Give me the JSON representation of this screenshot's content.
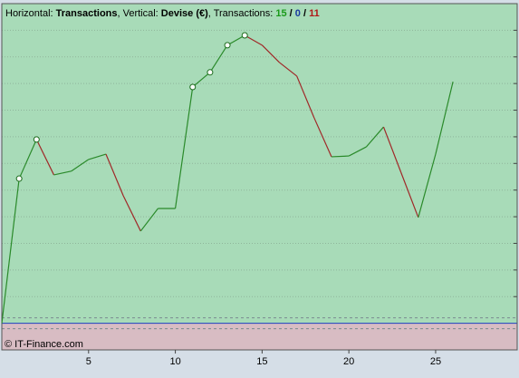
{
  "chart_data": {
    "type": "line",
    "title_parts": [
      {
        "text": "Horizontal: "
      },
      {
        "text": "Transactions",
        "bold": true
      },
      {
        "text": ", Vertical: "
      },
      {
        "text": "Devise (€)",
        "bold": true
      },
      {
        "text": ", Transactions: "
      },
      {
        "text": "15",
        "bold": true,
        "color": "#1a9a1a"
      },
      {
        "text": " / ",
        "bold": true
      },
      {
        "text": "0",
        "bold": true,
        "color": "#1a3aa0"
      },
      {
        "text": " / ",
        "bold": true
      },
      {
        "text": "11",
        "bold": true,
        "color": "#b01818"
      }
    ],
    "footer": "© IT-Finance.com",
    "x": [
      0,
      1,
      2,
      3,
      4,
      5,
      6,
      7,
      8,
      9,
      10,
      11,
      12,
      13,
      14,
      15,
      16,
      17,
      18,
      19,
      20,
      21,
      22,
      23,
      24,
      25,
      26
    ],
    "values": [
      0,
      5.43,
      6.9,
      5.57,
      5.71,
      6.15,
      6.35,
      4.79,
      3.46,
      4.31,
      4.31,
      8.87,
      9.42,
      10.44,
      10.81,
      10.44,
      9.79,
      9.28,
      7.71,
      6.25,
      6.28,
      6.62,
      7.37,
      5.67,
      3.97,
      6.35,
      9.07
    ],
    "up_color": "#2a8a2a",
    "down_color": "#a02828",
    "xlim": [
      0,
      29.7
    ],
    "ylim": [
      -1,
      12
    ],
    "xticks": [
      5,
      10,
      15,
      20,
      25
    ],
    "yticks": [
      1,
      2,
      3,
      4,
      5,
      6,
      7,
      8,
      9,
      10,
      11
    ],
    "grid": true
  }
}
